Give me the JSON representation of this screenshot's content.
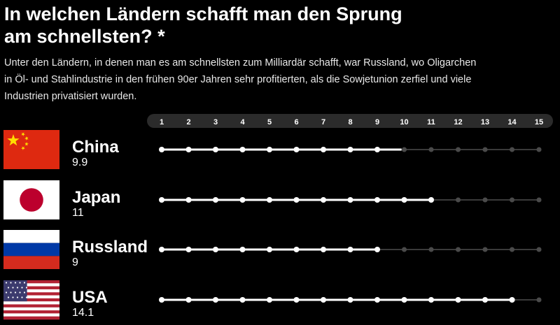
{
  "header": {
    "title": "In welchen Ländern schafft man den Sprung am schnellsten? *",
    "subtitle": "Unter den Ländern, in denen man es am schnellsten zum Milliardär schafft, war Russland, wo Oligarchen in Öl- und Stahlindustrie in den frühen 90er Jahren sehr profitierten, als die Sowjetunion zerfiel und viele Industrien privatisiert wurden."
  },
  "colors": {
    "background": "#000000",
    "text": "#ffffff",
    "track_dim": "#3a3a3a",
    "dot_dim": "#4a4a4a",
    "axis_bar": "#2b2b2b"
  },
  "chart_data": {
    "type": "dot-track",
    "x_ticks": [
      "1",
      "2",
      "3",
      "4",
      "5",
      "6",
      "7",
      "8",
      "9",
      "10",
      "11",
      "12",
      "13",
      "14",
      "15"
    ],
    "xlim": [
      1,
      15
    ],
    "grid": false,
    "rows": [
      {
        "country": "China",
        "value_label": "9.9",
        "value": 9.9,
        "flag": "china-flag-icon"
      },
      {
        "country": "Japan",
        "value_label": "11",
        "value": 11,
        "flag": "japan-flag-icon"
      },
      {
        "country": "Russland",
        "value_label": "9",
        "value": 9,
        "flag": "russia-flag-icon"
      },
      {
        "country": "USA",
        "value_label": "14.1",
        "value": 14.1,
        "flag": "usa-flag-icon"
      }
    ]
  }
}
